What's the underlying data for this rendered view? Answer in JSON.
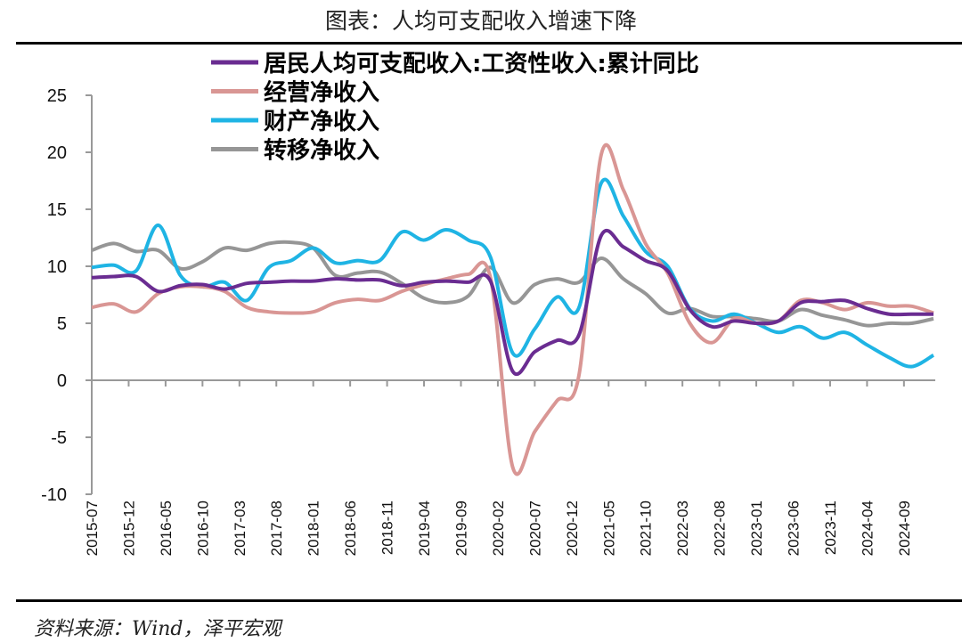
{
  "title": "图表：人均可支配收入增速下降",
  "source": "资料来源：Wind，泽平宏观",
  "chart_data": {
    "type": "line",
    "title": "图表：人均可支配收入增速下降",
    "xlabel": "",
    "ylabel": "",
    "ylim": [
      -10,
      25
    ],
    "yticks": [
      25,
      20,
      15,
      10,
      5,
      0,
      -5,
      -10
    ],
    "xtick_labels": [
      "2015-07",
      "2015-12",
      "2016-05",
      "2016-10",
      "2017-03",
      "2017-08",
      "2018-01",
      "2018-06",
      "2018-11",
      "2019-04",
      "2019-09",
      "2020-02",
      "2020-07",
      "2020-12",
      "2021-05",
      "2021-10",
      "2022-03",
      "2022-08",
      "2023-01",
      "2023-06",
      "2023-11",
      "2024-04",
      "2024-09"
    ],
    "grid": false,
    "legend_placement": "top-center",
    "x": [
      "2015-06",
      "2015-09",
      "2015-12",
      "2016-03",
      "2016-06",
      "2016-09",
      "2016-12",
      "2017-03",
      "2017-06",
      "2017-09",
      "2017-12",
      "2018-03",
      "2018-06",
      "2018-09",
      "2018-12",
      "2019-03",
      "2019-06",
      "2019-09",
      "2019-12",
      "2020-03",
      "2020-06",
      "2020-09",
      "2020-12",
      "2021-03",
      "2021-06",
      "2021-09",
      "2021-12",
      "2022-03",
      "2022-06",
      "2022-09",
      "2022-12",
      "2023-03",
      "2023-06",
      "2023-09",
      "2023-12",
      "2024-03",
      "2024-06",
      "2024-09",
      "2024-12"
    ],
    "series": [
      {
        "name": "居民人均可支配收入:工资性收入:累计同比",
        "color": "#6a2c91",
        "values": [
          9.0,
          9.1,
          9.1,
          7.8,
          8.3,
          8.4,
          8.0,
          8.5,
          8.6,
          8.7,
          8.7,
          8.9,
          8.8,
          8.8,
          8.3,
          8.6,
          8.7,
          8.6,
          8.7,
          0.8,
          2.5,
          3.5,
          4.0,
          12.7,
          11.7,
          10.5,
          9.6,
          6.2,
          4.7,
          5.2,
          5.0,
          5.2,
          6.8,
          6.9,
          7.0,
          6.3,
          5.8,
          5.8,
          5.8
        ]
      },
      {
        "name": "经营净收入",
        "color": "#d99694",
        "values": [
          6.4,
          6.7,
          6.0,
          7.6,
          8.2,
          8.2,
          7.8,
          6.4,
          6.0,
          5.9,
          6.0,
          6.8,
          7.1,
          7.0,
          7.8,
          8.4,
          8.9,
          9.3,
          9.0,
          -7.6,
          -4.5,
          -1.8,
          0.5,
          19.8,
          16.7,
          12.0,
          9.4,
          5.0,
          3.3,
          5.4,
          5.0,
          5.2,
          7.0,
          6.8,
          6.2,
          6.8,
          6.5,
          6.5,
          5.9
        ]
      },
      {
        "name": "财产净收入",
        "color": "#1fb4e4",
        "values": [
          9.9,
          10.1,
          9.6,
          13.6,
          9.2,
          8.2,
          8.6,
          7.0,
          9.9,
          10.5,
          11.6,
          10.3,
          10.5,
          10.5,
          13.0,
          12.3,
          13.2,
          12.3,
          10.8,
          2.4,
          4.5,
          7.3,
          6.4,
          17.3,
          14.4,
          11.3,
          10.0,
          6.3,
          5.2,
          5.8,
          5.0,
          4.2,
          4.7,
          3.7,
          4.2,
          3.1,
          2.0,
          1.2,
          2.2
        ]
      },
      {
        "name": "转移净收入",
        "color": "#969696",
        "values": [
          11.4,
          12.0,
          11.3,
          11.4,
          9.8,
          10.4,
          11.6,
          11.4,
          12.0,
          12.1,
          11.6,
          9.2,
          9.4,
          9.5,
          8.5,
          7.2,
          6.8,
          7.4,
          9.9,
          6.8,
          8.4,
          8.9,
          8.6,
          10.7,
          8.9,
          7.6,
          5.9,
          6.3,
          5.6,
          5.6,
          5.4,
          5.2,
          6.2,
          5.7,
          5.3,
          4.8,
          5.0,
          5.0,
          5.4
        ]
      }
    ]
  }
}
